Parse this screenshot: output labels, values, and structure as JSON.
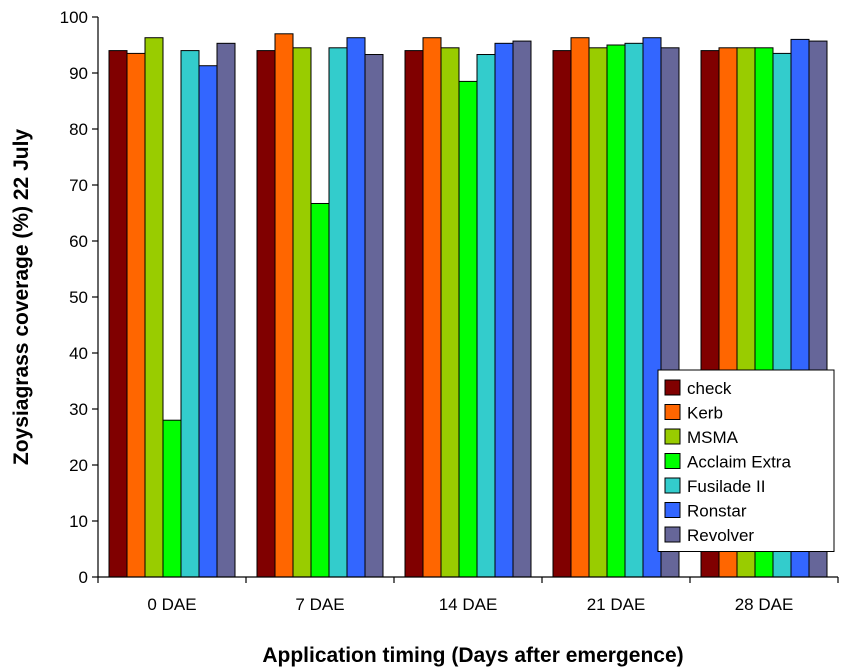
{
  "chart_data": {
    "type": "bar",
    "title": "",
    "xlabel": "Application timing (Days after emergence)",
    "ylabel": "Zoysiagrass coverage (%) 22 July",
    "ylim": [
      0,
      100
    ],
    "yticks": [
      "0",
      "10",
      "20",
      "30",
      "40",
      "50",
      "60",
      "70",
      "80",
      "90",
      "100"
    ],
    "categories": [
      "0 DAE",
      "7 DAE",
      "14 DAE",
      "21 DAE",
      "28 DAE"
    ],
    "grid": false,
    "legend_position": "bottom-right",
    "series": [
      {
        "name": "check",
        "color": "#800000",
        "values": [
          94,
          94,
          94,
          94,
          94
        ]
      },
      {
        "name": "Kerb",
        "color": "#ff6600",
        "values": [
          93.5,
          97,
          96.3,
          96.3,
          94.5
        ]
      },
      {
        "name": "MSMA",
        "color": "#99cc00",
        "values": [
          96.3,
          94.5,
          94.5,
          94.5,
          94.5
        ]
      },
      {
        "name": "Acclaim Extra",
        "color": "#00ff00",
        "values": [
          28,
          66.7,
          88.5,
          95,
          94.5
        ]
      },
      {
        "name": "Fusilade II",
        "color": "#33cccc",
        "values": [
          94,
          94.5,
          93.3,
          95.3,
          93.5
        ]
      },
      {
        "name": "Ronstar",
        "color": "#3366ff",
        "values": [
          91.3,
          96.3,
          95.3,
          96.3,
          96
        ]
      },
      {
        "name": "Revolver",
        "color": "#666699",
        "values": [
          95.3,
          93.3,
          95.7,
          94.5,
          95.7
        ]
      }
    ]
  }
}
